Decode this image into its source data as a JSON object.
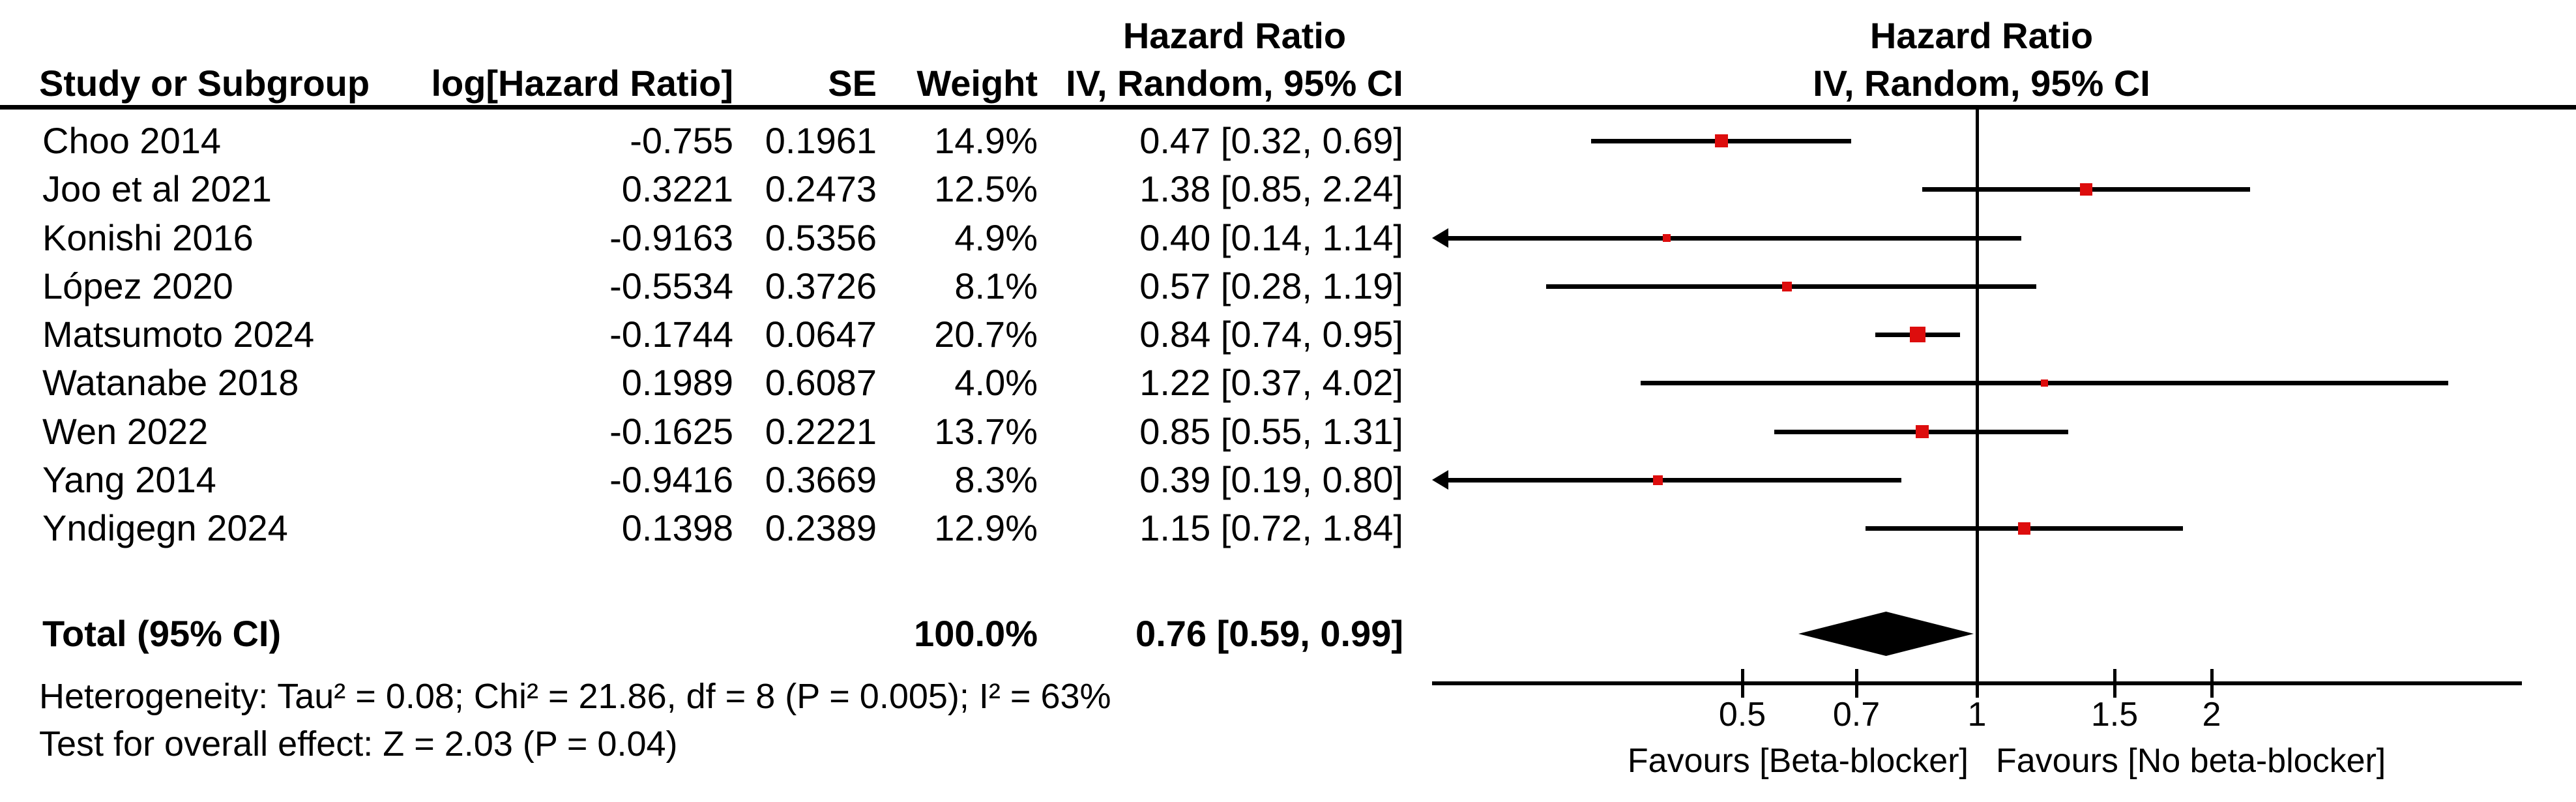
{
  "header": {
    "study_col": "Study or Subgroup",
    "log_hr_col": "log[Hazard Ratio]",
    "se_col": "SE",
    "weight_col": "Weight",
    "effect_col_line1": "Hazard Ratio",
    "effect_col_line2": "IV, Random, 95% CI",
    "plot_col_line1": "Hazard Ratio",
    "plot_col_line2": "IV, Random, 95% CI"
  },
  "colors": {
    "marker_red": "#DD0D0D",
    "ink": "#000000"
  },
  "chart_data": {
    "type": "scatter",
    "subtype": "forest-plot",
    "effect_measure": "Hazard Ratio",
    "model": "IV, Random, 95% CI",
    "xscale": "log",
    "xlim": [
      0.2,
      5
    ],
    "xticks": [
      0.5,
      0.7,
      1,
      1.5,
      2
    ],
    "xtick_labels": [
      "0.5",
      "0.7",
      "1",
      "1.5",
      "2"
    ],
    "footer_left": "Favours [Beta-blocker]",
    "footer_right": "Favours [No beta-blocker]",
    "studies": [
      {
        "name": "Choo 2014",
        "log_hr": "-0.755",
        "se": "0.1961",
        "weight": "14.9%",
        "weight_pct": 14.9,
        "hr": 0.47,
        "ci_low": 0.32,
        "ci_high": 0.69,
        "ci_text": "0.47 [0.32, 0.69]"
      },
      {
        "name": "Joo et al 2021",
        "log_hr": "0.3221",
        "se": "0.2473",
        "weight": "12.5%",
        "weight_pct": 12.5,
        "hr": 1.38,
        "ci_low": 0.85,
        "ci_high": 2.24,
        "ci_text": "1.38 [0.85, 2.24]"
      },
      {
        "name": "Konishi 2016",
        "log_hr": "-0.9163",
        "se": "0.5356",
        "weight": "4.9%",
        "weight_pct": 4.9,
        "hr": 0.4,
        "ci_low": 0.14,
        "ci_high": 1.14,
        "ci_text": "0.40 [0.14, 1.14]"
      },
      {
        "name": "López 2020",
        "log_hr": "-0.5534",
        "se": "0.3726",
        "weight": "8.1%",
        "weight_pct": 8.1,
        "hr": 0.57,
        "ci_low": 0.28,
        "ci_high": 1.19,
        "ci_text": "0.57 [0.28, 1.19]"
      },
      {
        "name": "Matsumoto 2024",
        "log_hr": "-0.1744",
        "se": "0.0647",
        "weight": "20.7%",
        "weight_pct": 20.7,
        "hr": 0.84,
        "ci_low": 0.74,
        "ci_high": 0.95,
        "ci_text": "0.84 [0.74, 0.95]"
      },
      {
        "name": "Watanabe 2018",
        "log_hr": "0.1989",
        "se": "0.6087",
        "weight": "4.0%",
        "weight_pct": 4.0,
        "hr": 1.22,
        "ci_low": 0.37,
        "ci_high": 4.02,
        "ci_text": "1.22 [0.37, 4.02]"
      },
      {
        "name": "Wen 2022",
        "log_hr": "-0.1625",
        "se": "0.2221",
        "weight": "13.7%",
        "weight_pct": 13.7,
        "hr": 0.85,
        "ci_low": 0.55,
        "ci_high": 1.31,
        "ci_text": "0.85 [0.55, 1.31]"
      },
      {
        "name": "Yang 2014",
        "log_hr": "-0.9416",
        "se": "0.3669",
        "weight": "8.3%",
        "weight_pct": 8.3,
        "hr": 0.39,
        "ci_low": 0.19,
        "ci_high": 0.8,
        "ci_text": "0.39 [0.19, 0.80]"
      },
      {
        "name": "Yndigegn 2024",
        "log_hr": "0.1398",
        "se": "0.2389",
        "weight": "12.9%",
        "weight_pct": 12.9,
        "hr": 1.15,
        "ci_low": 0.72,
        "ci_high": 1.84,
        "ci_text": "1.15 [0.72, 1.84]"
      }
    ],
    "total": {
      "label": "Total (95% CI)",
      "weight": "100.0%",
      "weight_pct": 100.0,
      "hr": 0.76,
      "ci_low": 0.59,
      "ci_high": 0.99,
      "ci_text": "0.76 [0.59, 0.99]"
    },
    "heterogeneity": "Heterogeneity: Tau² = 0.08; Chi² = 21.86, df = 8 (P = 0.005); I² = 63%",
    "overall_effect": "Test for overall effect: Z = 2.03 (P = 0.04)"
  }
}
